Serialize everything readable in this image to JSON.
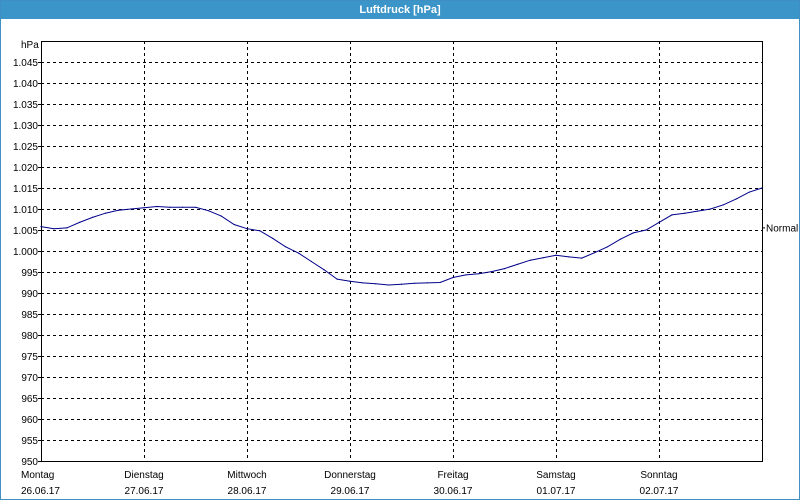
{
  "window": {
    "title": "Luftdruck [hPa]"
  },
  "chart_data": {
    "type": "line",
    "title": "Luftdruck [hPa]",
    "ylabel": "hPa",
    "ylim": [
      950,
      1050
    ],
    "yticks": [
      950,
      955,
      960,
      965,
      970,
      975,
      980,
      985,
      990,
      995,
      1000,
      1005,
      1010,
      1015,
      1020,
      1025,
      1030,
      1035,
      1040,
      1045
    ],
    "ytick_labels": [
      "950",
      "955",
      "960",
      "965",
      "970",
      "975",
      "980",
      "985",
      "990",
      "995",
      "1.000",
      "1.005",
      "1.010",
      "1.015",
      "1.020",
      "1.025",
      "1.030",
      "1.035",
      "1.040",
      "1.045"
    ],
    "xlim_days": [
      0,
      7
    ],
    "x_labels": [
      {
        "day": "Montag",
        "date": "26.06.17"
      },
      {
        "day": "Dienstag",
        "date": "27.06.17"
      },
      {
        "day": "Mittwoch",
        "date": "28.06.17"
      },
      {
        "day": "Donnerstag",
        "date": "29.06.17"
      },
      {
        "day": "Freitag",
        "date": "30.06.17"
      },
      {
        "day": "Samstag",
        "date": "01.07.17"
      },
      {
        "day": "Sonntag",
        "date": "02.07.17"
      }
    ],
    "grid": true,
    "reference_line": {
      "label": "Normal",
      "value": 1005.5
    },
    "series": [
      {
        "color": "#00008b",
        "x": [
          "26.06.17 00:00",
          "26.06.17 03:00",
          "26.06.17 06:00",
          "26.06.17 09:00",
          "26.06.17 12:00",
          "26.06.17 15:00",
          "26.06.17 18:00",
          "26.06.17 21:00",
          "27.06.17 00:00",
          "27.06.17 03:00",
          "27.06.17 06:00",
          "27.06.17 09:00",
          "27.06.17 12:00",
          "27.06.17 15:00",
          "27.06.17 18:00",
          "27.06.17 21:00",
          "28.06.17 00:00",
          "28.06.17 03:00",
          "28.06.17 06:00",
          "28.06.17 09:00",
          "28.06.17 12:00",
          "28.06.17 15:00",
          "28.06.17 18:00",
          "28.06.17 21:00",
          "29.06.17 00:00",
          "29.06.17 03:00",
          "29.06.17 06:00",
          "29.06.17 09:00",
          "29.06.17 12:00",
          "29.06.17 15:00",
          "29.06.17 18:00",
          "29.06.17 21:00",
          "30.06.17 00:00",
          "30.06.17 03:00",
          "30.06.17 06:00",
          "30.06.17 09:00",
          "30.06.17 12:00",
          "30.06.17 15:00",
          "30.06.17 18:00",
          "30.06.17 21:00",
          "01.07.17 00:00",
          "01.07.17 03:00",
          "01.07.17 06:00",
          "01.07.17 09:00",
          "01.07.17 12:00",
          "01.07.17 15:00",
          "01.07.17 18:00",
          "01.07.17 21:00",
          "02.07.17 00:00",
          "02.07.17 03:00",
          "02.07.17 06:00",
          "02.07.17 09:00",
          "02.07.17 12:00",
          "02.07.17 15:00",
          "02.07.17 18:00",
          "02.07.17 21:00",
          "02.07.17 24:00"
        ],
        "values": [
          1005.8,
          1005.3,
          1005.5,
          1006.8,
          1008.0,
          1009.0,
          1009.7,
          1010.0,
          1010.3,
          1010.6,
          1010.4,
          1010.4,
          1010.4,
          1009.6,
          1008.3,
          1006.3,
          1005.3,
          1004.8,
          1003.0,
          1001.0,
          999.5,
          997.5,
          995.5,
          993.3,
          992.8,
          992.4,
          992.2,
          991.9,
          992.1,
          992.3,
          992.4,
          992.5,
          993.7,
          994.3,
          994.6,
          995.1,
          995.8,
          996.8,
          997.8,
          998.4,
          999.0,
          998.6,
          998.3,
          999.6,
          1001.0,
          1002.8,
          1004.3,
          1005.0,
          1006.8,
          1008.6,
          1009.0,
          1009.5,
          1010.0,
          1011.0,
          1012.4,
          1014.0,
          1015.0
        ]
      }
    ]
  }
}
